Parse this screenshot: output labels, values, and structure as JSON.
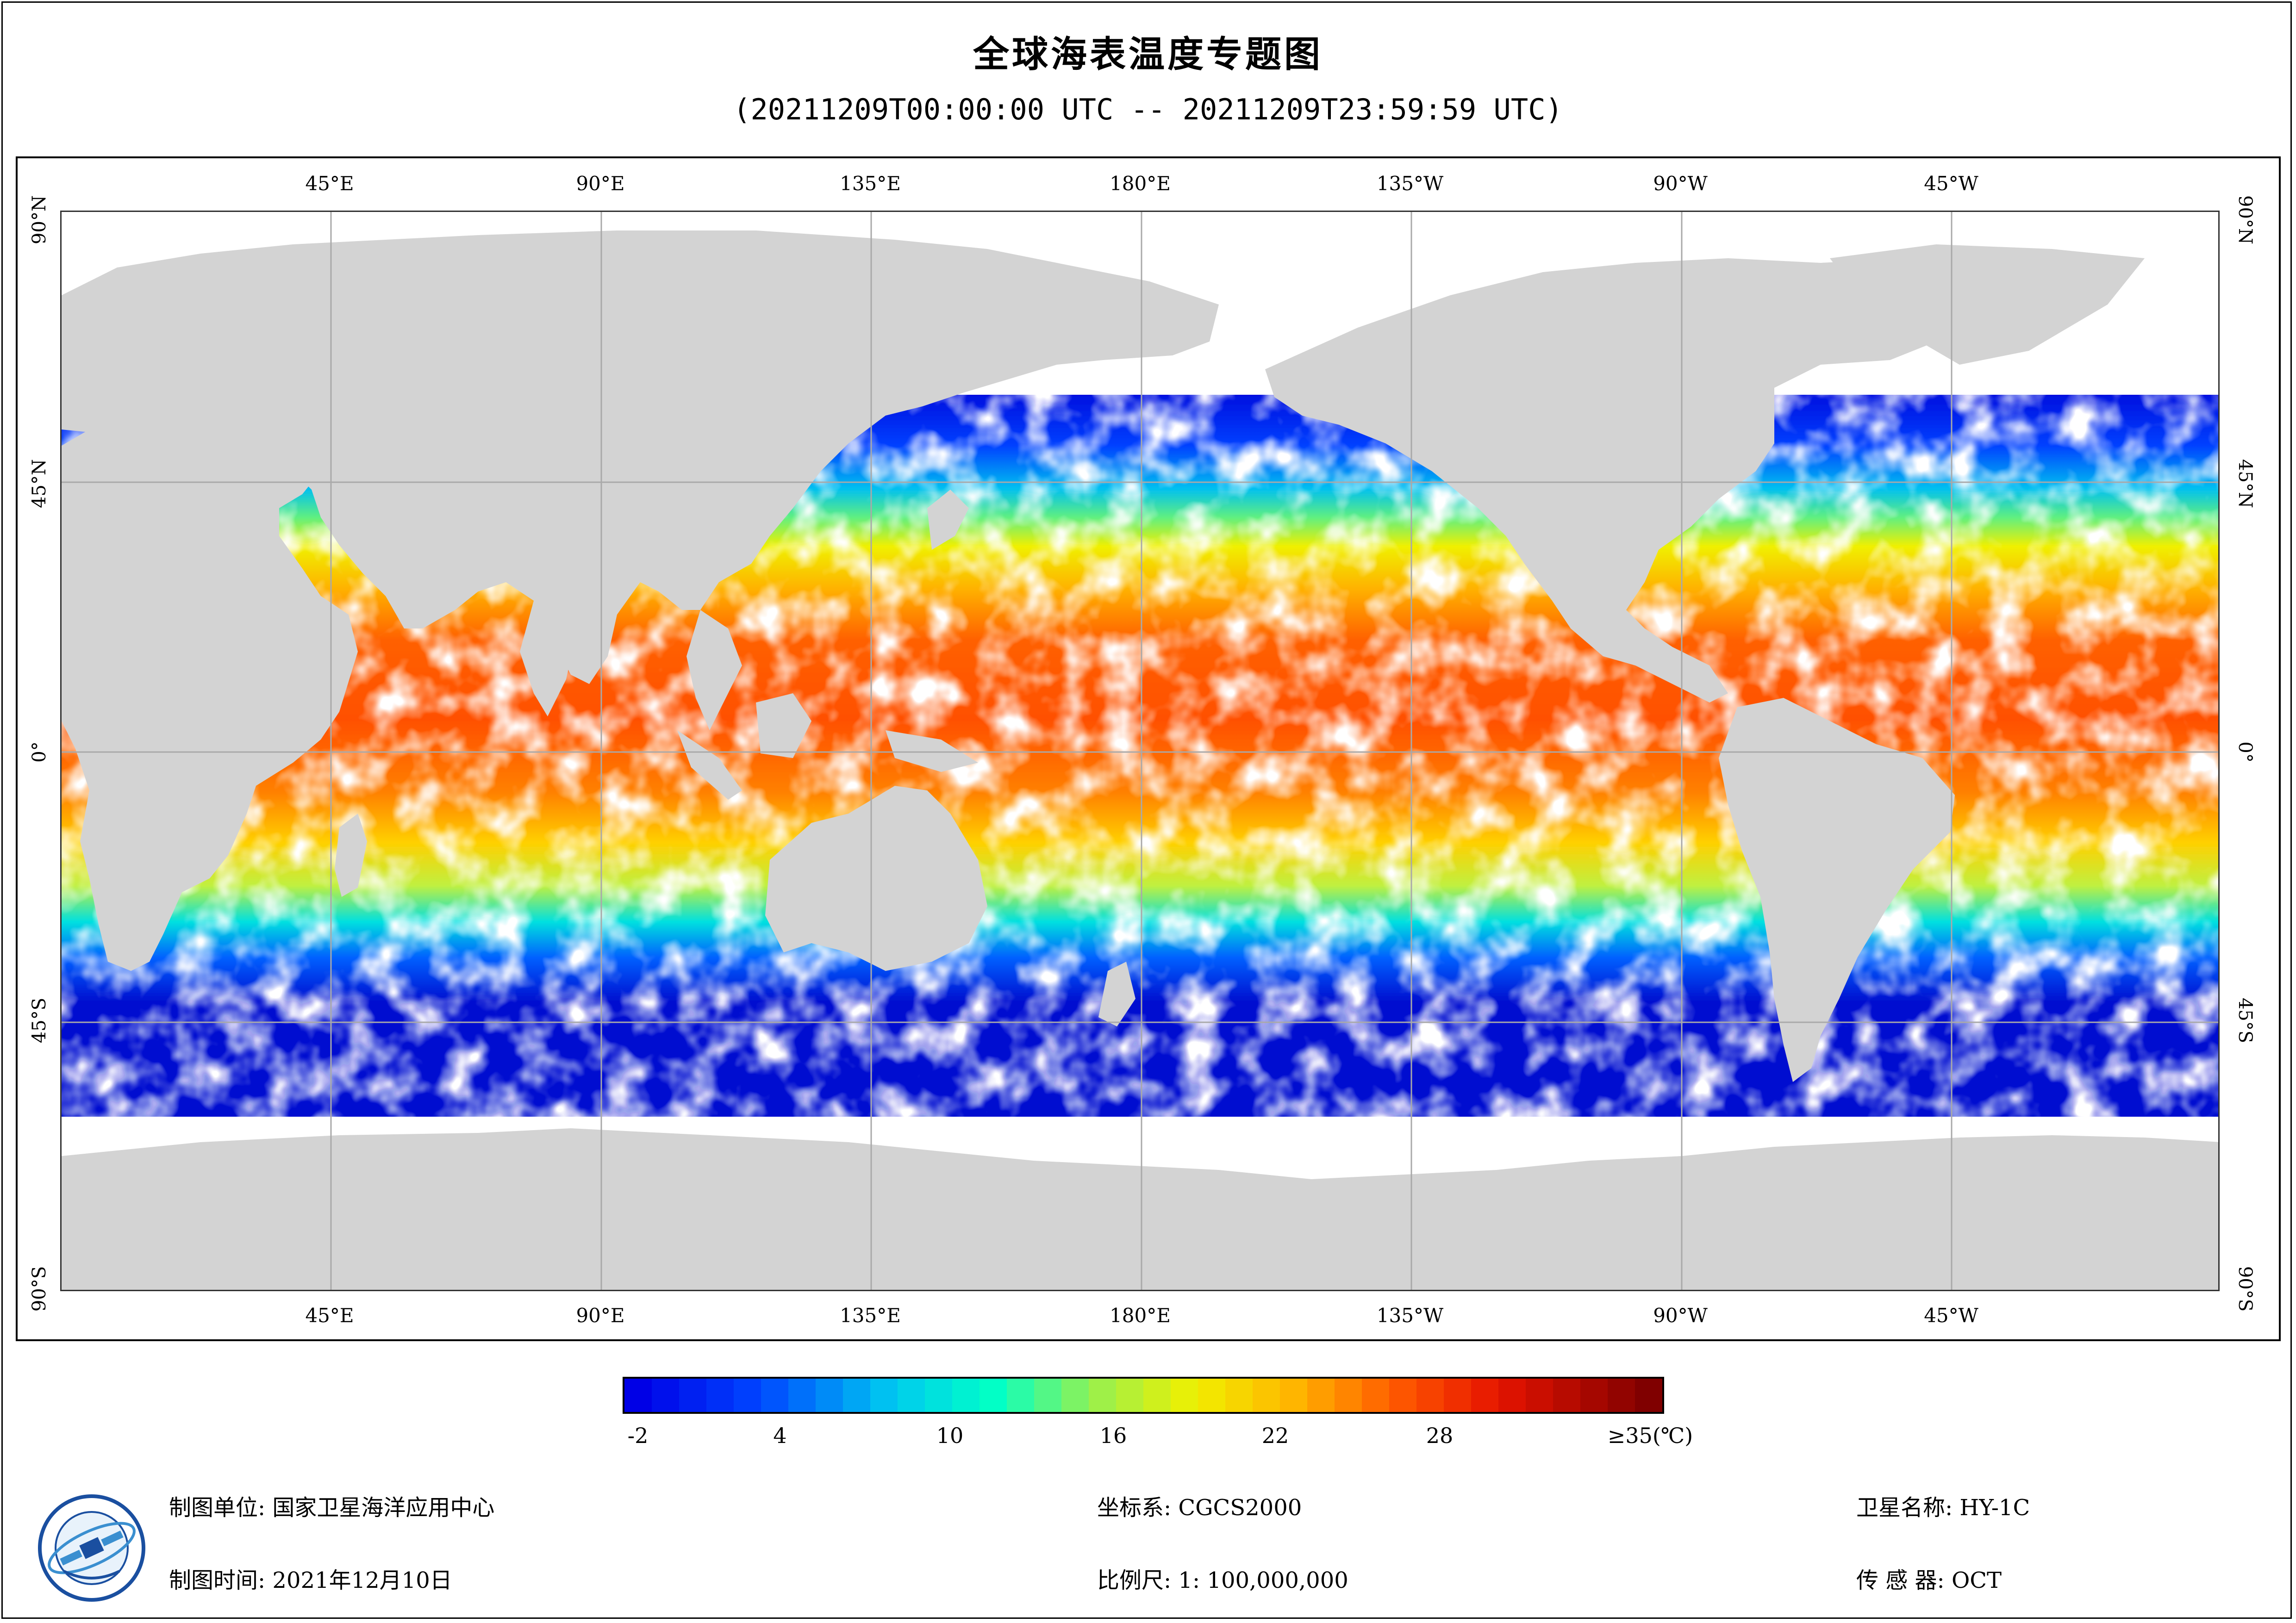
{
  "header": {
    "title": "全球海表温度专题图",
    "subtitle": "(20211209T00:00:00 UTC -- 20211209T23:59:59 UTC)"
  },
  "map": {
    "lon_labels_top": [
      "45°E",
      "90°E",
      "135°E",
      "180°E",
      "135°W",
      "90°W",
      "45°W"
    ],
    "lon_labels_bottom": [
      "45°E",
      "90°E",
      "135°E",
      "180°E",
      "135°W",
      "90°W",
      "45°W"
    ],
    "lat_labels_left": [
      "90°N",
      "45°N",
      "0°",
      "45°S",
      "90°S"
    ],
    "lat_labels_right": [
      "90°N",
      "45°N",
      "0°",
      "45°S",
      "90°S"
    ],
    "land_color": "#d3d3d3",
    "no_data_color": "#ffffff",
    "grid_color": "#a9a9a9"
  },
  "legend": {
    "ticks": [
      "-2",
      "4",
      "10",
      "16",
      "22",
      "28",
      "≥35(℃)"
    ],
    "under_color": "#0000e6",
    "over_color": "#800000"
  },
  "footer": {
    "producer": "制图单位: 国家卫星海洋应用中心",
    "date": "制图时间: 2021年12月10日",
    "crs": "坐标系: CGCS2000",
    "scale": "比例尺: 1: 100,000,000",
    "satellite": "卫星名称: HY-1C",
    "sensor": "传 感 器: OCT"
  }
}
